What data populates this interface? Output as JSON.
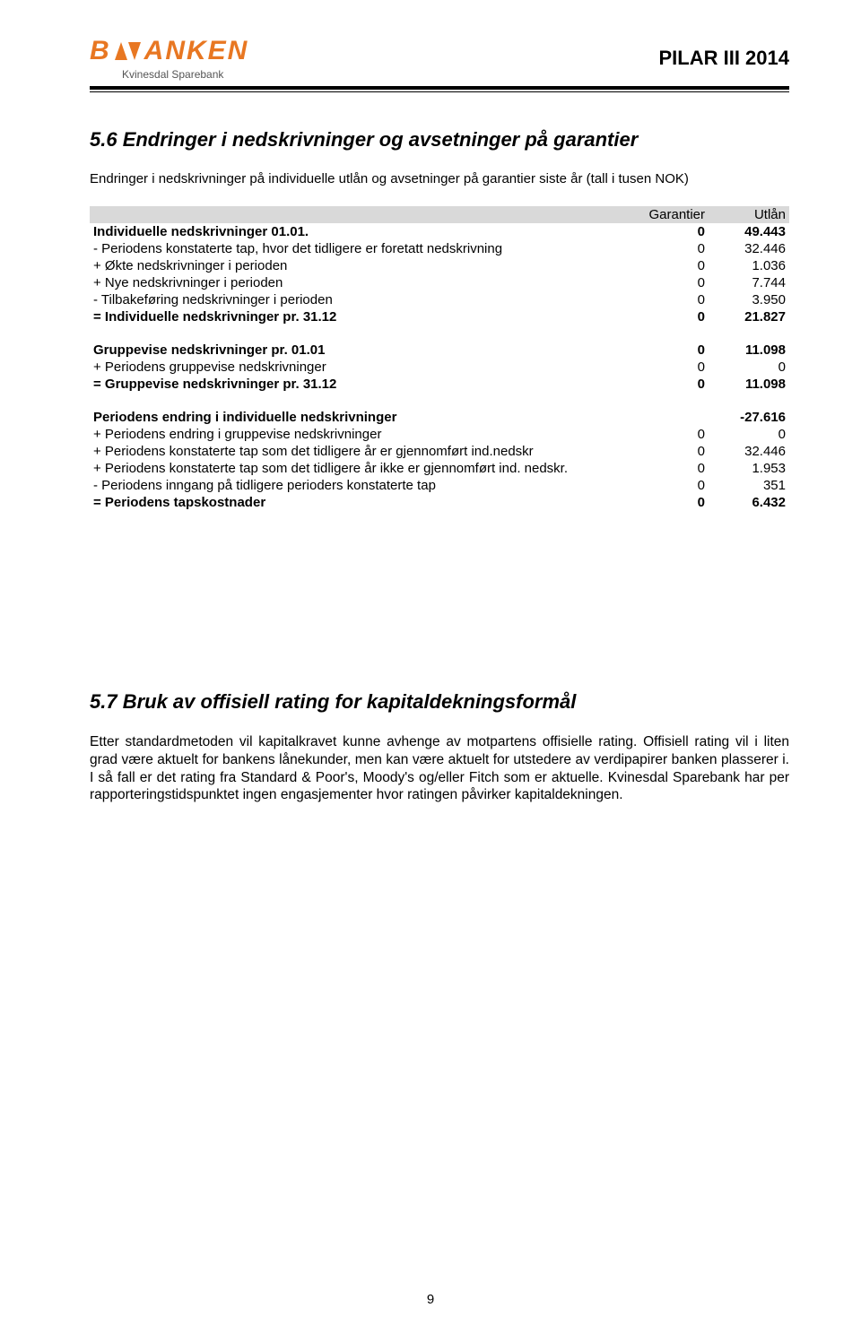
{
  "header": {
    "logo_main": "ANKEN",
    "logo_sub": "Kvinesdal Sparebank",
    "doc_title": "PILAR III 2014"
  },
  "section56": {
    "heading": "5.6  Endringer i nedskrivninger og avsetninger på garantier",
    "intro": "Endringer i nedskrivninger på individuelle utlån og avsetninger på garantier siste år (tall i tusen NOK)",
    "columns": {
      "c1": "Garantier",
      "c2": "Utlån"
    },
    "rows": [
      {
        "label": "Individuelle nedskrivninger 01.01.",
        "c1": "0",
        "c2": "49.443",
        "bold": true
      },
      {
        "label": "-  Periodens konstaterte tap, hvor det tidligere er foretatt nedskrivning",
        "c1": "0",
        "c2": "32.446"
      },
      {
        "label": "+ Økte nedskrivninger i perioden",
        "c1": "0",
        "c2": "1.036"
      },
      {
        "label": "+ Nye nedskrivninger i perioden",
        "c1": "0",
        "c2": "7.744"
      },
      {
        "label": "-  Tilbakeføring nedskrivninger i perioden",
        "c1": "0",
        "c2": "3.950"
      },
      {
        "label": "= Individuelle nedskrivninger pr. 31.12",
        "c1": "0",
        "c2": "21.827",
        "bold": true
      }
    ],
    "rows2": [
      {
        "label": "Gruppevise nedskrivninger pr. 01.01",
        "c1": "0",
        "c2": "11.098",
        "bold": true
      },
      {
        "label": "+ Periodens gruppevise nedskrivninger",
        "c1": "0",
        "c2": "0"
      },
      {
        "label": "= Gruppevise nedskrivninger pr. 31.12",
        "c1": "0",
        "c2": "11.098",
        "bold": true
      }
    ],
    "rows3": [
      {
        "label": "Periodens endring i individuelle nedskrivninger",
        "c1": "",
        "c2": "-27.616",
        "bold": true
      },
      {
        "label": "+ Periodens endring i gruppevise nedskrivninger",
        "c1": "0",
        "c2": "0"
      },
      {
        "label": "+ Periodens konstaterte tap som det tidligere år er gjennomført ind.nedskr",
        "c1": "0",
        "c2": "32.446"
      },
      {
        "label": "+ Periodens konstaterte tap som det tidligere år ikke er gjennomført ind. nedskr.",
        "c1": "0",
        "c2": "1.953"
      },
      {
        "label": "-  Periodens inngang på tidligere perioders konstaterte tap",
        "c1": "0",
        "c2": "351"
      },
      {
        "label": "= Periodens tapskostnader",
        "c1": "0",
        "c2": "6.432",
        "bold": true
      }
    ]
  },
  "section57": {
    "heading": "5.7  Bruk av offisiell rating for kapitaldekningsformål",
    "body": "Etter standardmetoden vil kapitalkravet kunne avhenge av motpartens offisielle rating. Offisiell rating vil i liten grad være aktuelt for bankens lånekunder, men kan være aktuelt for utstedere av verdipapirer banken plasserer i. I så fall er det rating fra Standard & Poor's, Moody's og/eller Fitch som er aktuelle. Kvinesdal Sparebank har per rapporteringstidspunktet ingen engasjementer hvor ratingen påvirker kapitaldekningen."
  },
  "page_number": "9"
}
